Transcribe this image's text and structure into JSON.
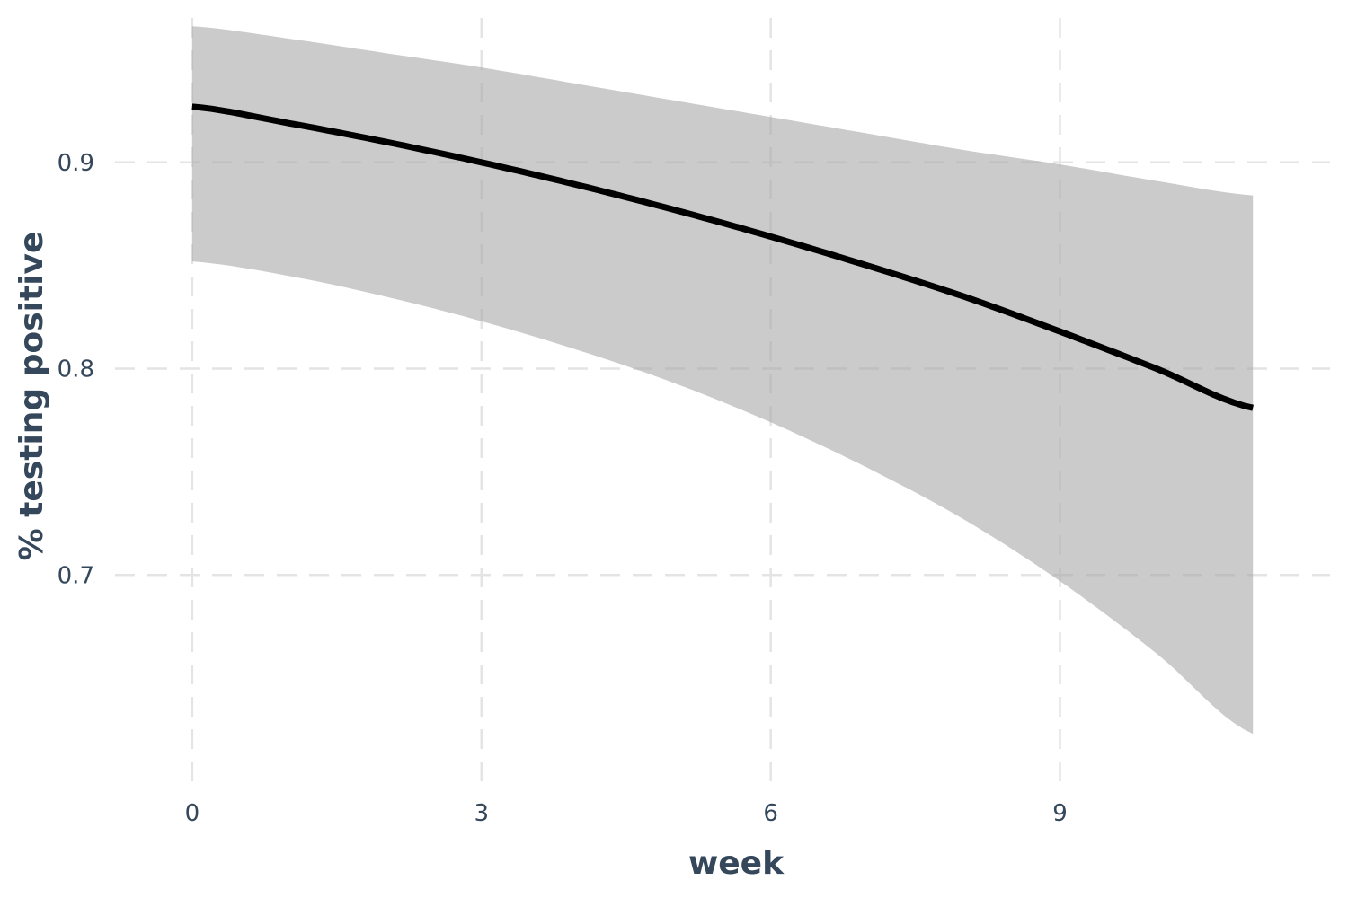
{
  "chart_data": {
    "type": "line",
    "title": "",
    "xlabel": "week",
    "ylabel": "% testing positive",
    "xlim": [
      -0.8,
      11.8
    ],
    "ylim": [
      0.6,
      0.97
    ],
    "x_ticks": [
      0,
      3,
      6,
      9
    ],
    "y_ticks": [
      0.7,
      0.8,
      0.9
    ],
    "grid": true,
    "legend": "none",
    "series": [
      {
        "x": [
          0,
          1,
          2,
          3,
          4,
          5,
          6,
          7,
          8,
          9,
          10,
          11
        ],
        "y": [
          0.927,
          0.919,
          0.91,
          0.9,
          0.889,
          0.877,
          0.864,
          0.85,
          0.835,
          0.818,
          0.8,
          0.781
        ],
        "lower": [
          0.852,
          0.845,
          0.835,
          0.823,
          0.809,
          0.793,
          0.774,
          0.752,
          0.727,
          0.697,
          0.662,
          0.623
        ],
        "upper": [
          0.966,
          0.96,
          0.953,
          0.946,
          0.938,
          0.93,
          0.922,
          0.914,
          0.906,
          0.899,
          0.891,
          0.884
        ]
      }
    ],
    "colors": {
      "line": "#000000",
      "ribbon": "#a9a9a9",
      "grid": "#e4e4e4",
      "text": "#34475b"
    }
  }
}
